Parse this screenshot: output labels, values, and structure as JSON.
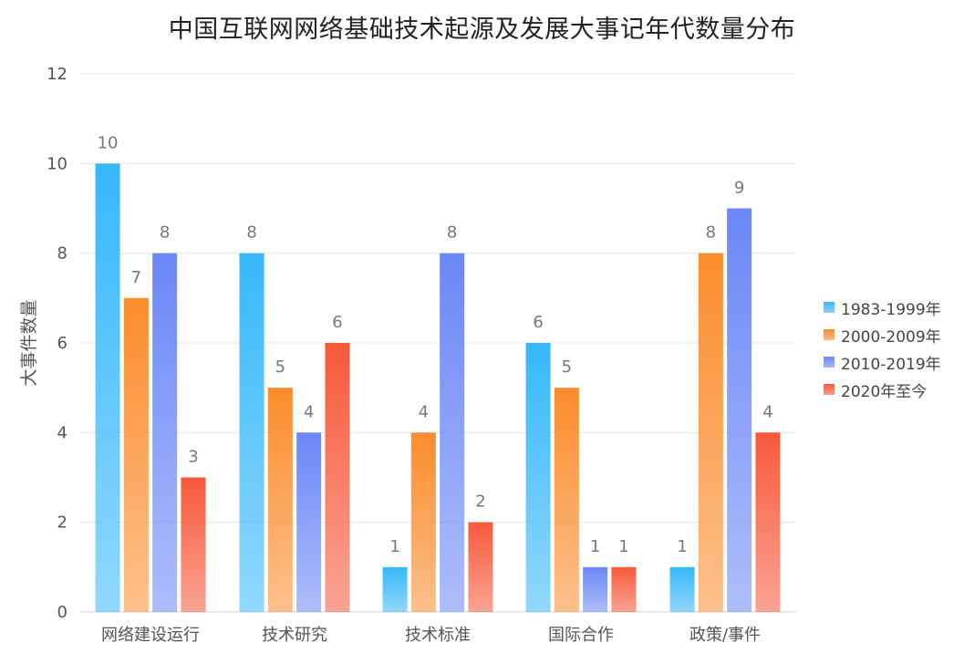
{
  "chart_data": {
    "type": "bar",
    "title": "中国互联网网络基础技术起源及发展大事记年代数量分布",
    "xlabel": "",
    "ylabel": "大事件数量",
    "ylim": [
      0,
      12
    ],
    "yticks": [
      0,
      2,
      4,
      6,
      8,
      10,
      12
    ],
    "grid": true,
    "legend_position": "right",
    "categories": [
      "网络建设运行",
      "技术研究",
      "技术标准",
      "国际合作",
      "政策/事件"
    ],
    "series": [
      {
        "name": "1983-1999年",
        "values": [
          10,
          8,
          1,
          6,
          1
        ],
        "color": "#35b8fb"
      },
      {
        "name": "2000-2009年",
        "values": [
          7,
          5,
          4,
          5,
          8
        ],
        "color": "#fb8c2c"
      },
      {
        "name": "2010-2019年",
        "values": [
          8,
          4,
          8,
          1,
          9
        ],
        "color": "#6b87f8"
      },
      {
        "name": "2020年至今",
        "values": [
          3,
          6,
          2,
          1,
          4
        ],
        "color": "#f7593a"
      }
    ]
  }
}
